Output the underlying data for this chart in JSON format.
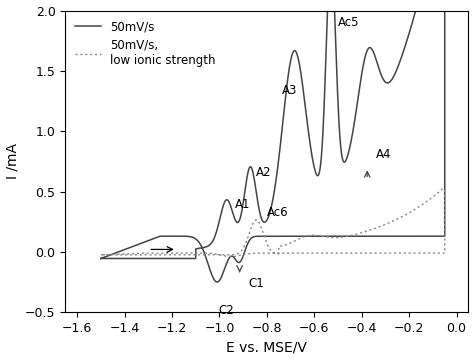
{
  "xlim": [
    -1.65,
    0.05
  ],
  "ylim": [
    -0.5,
    2.0
  ],
  "xlabel": "E vs. MSE/V",
  "ylabel": "I /mA",
  "xticks": [
    -1.6,
    -1.4,
    -1.2,
    -1.0,
    -0.8,
    -0.6,
    -0.4,
    -0.2,
    0.0
  ],
  "yticks": [
    -0.5,
    0.0,
    0.5,
    1.0,
    1.5,
    2.0
  ],
  "legend_solid": "50mV/s",
  "legend_dot": "50mV/s,\nlow ionic strength",
  "color_solid": "#444444",
  "color_dot": "#888888",
  "figsize": [
    4.74,
    3.6
  ],
  "dpi": 100
}
